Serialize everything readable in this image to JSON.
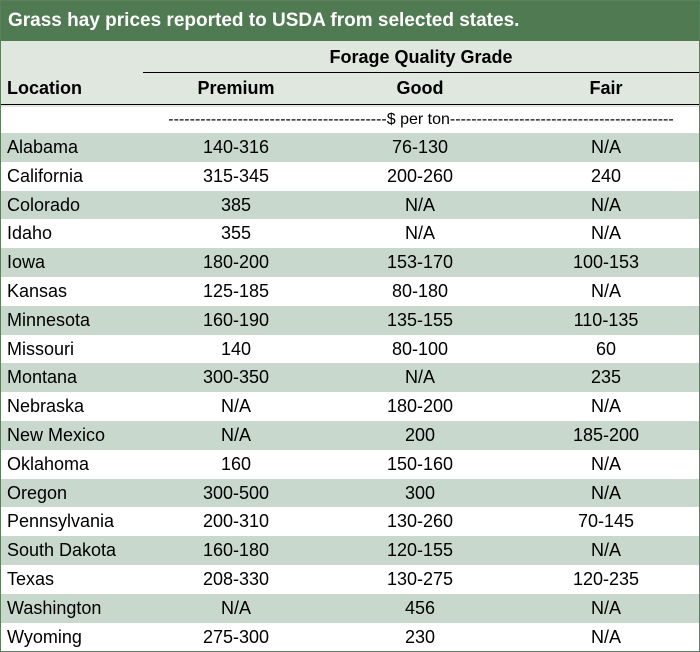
{
  "title": "Grass hay prices reported to USDA from selected states.",
  "header": {
    "group_label": "Forage Quality Grade",
    "location": "Location",
    "premium": "Premium",
    "good": "Good",
    "fair": "Fair"
  },
  "unit_label": "-----------------------------------------$ per ton------------------------------------------",
  "colors": {
    "title_bg": "#4f7a52",
    "band": "#c9d8cd",
    "header_bg": "#dfe7df"
  },
  "rows": [
    {
      "location": "Alabama",
      "premium": "140-316",
      "good": "76-130",
      "fair": "N/A"
    },
    {
      "location": "California",
      "premium": "315-345",
      "good": "200-260",
      "fair": "240"
    },
    {
      "location": "Colorado",
      "premium": "385",
      "good": "N/A",
      "fair": "N/A"
    },
    {
      "location": "Idaho",
      "premium": "355",
      "good": "N/A",
      "fair": "N/A"
    },
    {
      "location": "Iowa",
      "premium": "180-200",
      "good": "153-170",
      "fair": "100-153"
    },
    {
      "location": "Kansas",
      "premium": "125-185",
      "good": "80-180",
      "fair": "N/A"
    },
    {
      "location": "Minnesota",
      "premium": "160-190",
      "good": "135-155",
      "fair": "110-135"
    },
    {
      "location": "Missouri",
      "premium": "140",
      "good": "80-100",
      "fair": "60"
    },
    {
      "location": "Montana",
      "premium": "300-350",
      "good": "N/A",
      "fair": "235"
    },
    {
      "location": "Nebraska",
      "premium": "N/A",
      "good": "180-200",
      "fair": "N/A"
    },
    {
      "location": "New Mexico",
      "premium": "N/A",
      "good": "200",
      "fair": "185-200"
    },
    {
      "location": "Oklahoma",
      "premium": "160",
      "good": "150-160",
      "fair": "N/A"
    },
    {
      "location": "Oregon",
      "premium": "300-500",
      "good": "300",
      "fair": "N/A"
    },
    {
      "location": "Pennsylvania",
      "premium": "200-310",
      "good": "130-260",
      "fair": "70-145"
    },
    {
      "location": "South Dakota",
      "premium": "160-180",
      "good": "120-155",
      "fair": "N/A"
    },
    {
      "location": "Texas",
      "premium": "208-330",
      "good": "130-275",
      "fair": "120-235"
    },
    {
      "location": "Washington",
      "premium": "N/A",
      "good": "456",
      "fair": "N/A"
    },
    {
      "location": "Wyoming",
      "premium": "275-300",
      "good": "230",
      "fair": "N/A"
    }
  ]
}
